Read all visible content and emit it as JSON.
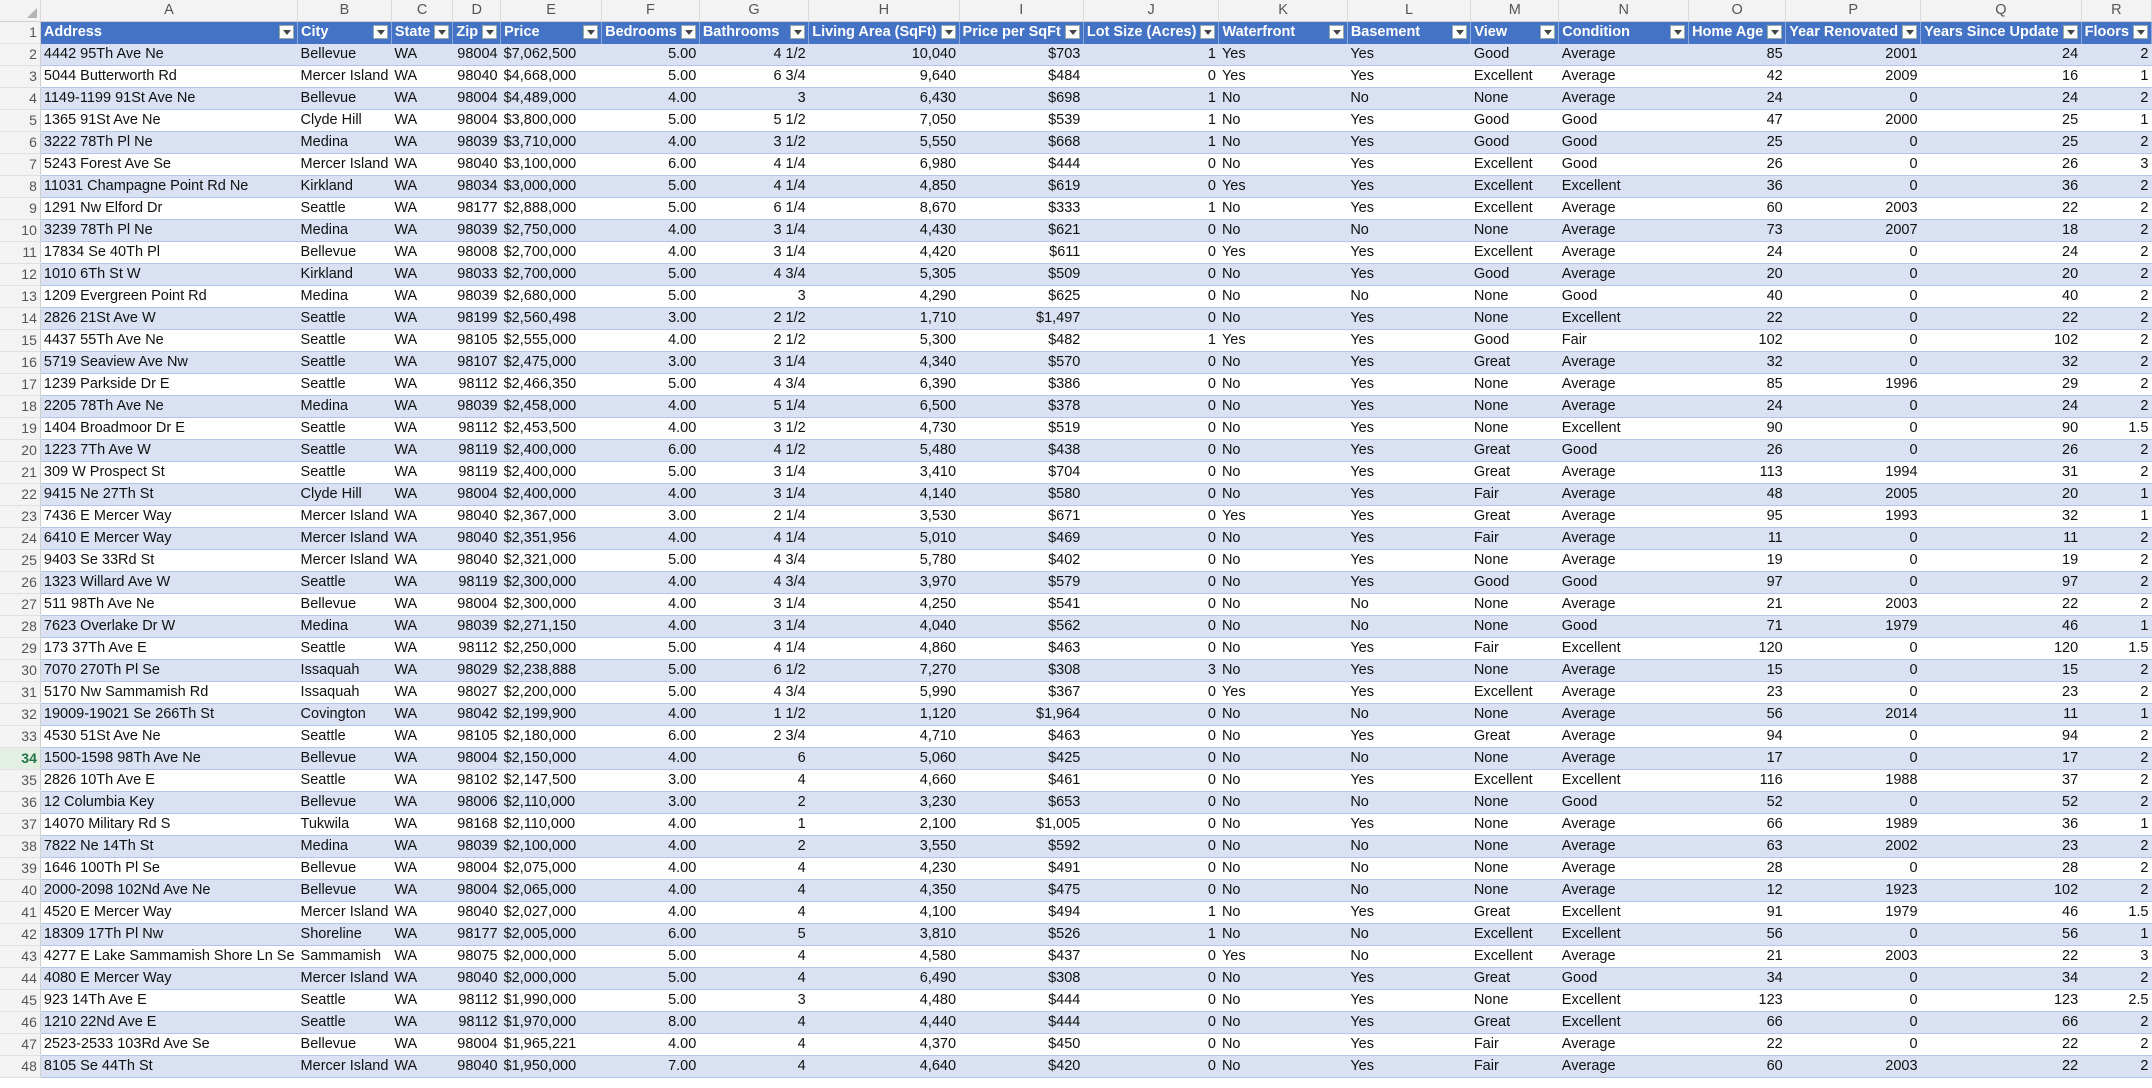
{
  "columns": [
    "A",
    "B",
    "C",
    "D",
    "E",
    "F",
    "G",
    "H",
    "I",
    "J",
    "K",
    "L",
    "M",
    "N",
    "O",
    "P",
    "Q",
    "R"
  ],
  "headers": [
    "Address",
    "City",
    "State",
    "Zip",
    "Price",
    "Bedrooms",
    "Bathrooms",
    "Living Area (SqFt)",
    "Price per SqFt",
    "Lot Size (Acres)",
    "Waterfront",
    "Basement",
    "View",
    "Condition",
    "Home Age",
    "Year Renovated",
    "Years Since Update",
    "Floors"
  ],
  "selected_row": 34,
  "rows": [
    [
      "2",
      "4442 95Th Ave Ne",
      "Bellevue",
      "WA",
      "98004",
      "$7,062,500",
      "5.00",
      "4 1/2",
      "10,040",
      "$703",
      "1",
      "Yes",
      "Yes",
      "Good",
      "Average",
      "85",
      "2001",
      "24",
      "2"
    ],
    [
      "3",
      "5044 Butterworth Rd",
      "Mercer Island",
      "WA",
      "98040",
      "$4,668,000",
      "5.00",
      "6 3/4",
      "9,640",
      "$484",
      "0",
      "Yes",
      "Yes",
      "Excellent",
      "Average",
      "42",
      "2009",
      "16",
      "1"
    ],
    [
      "4",
      "1149-1199 91St Ave Ne",
      "Bellevue",
      "WA",
      "98004",
      "$4,489,000",
      "4.00",
      "3",
      "6,430",
      "$698",
      "1",
      "No",
      "No",
      "None",
      "Average",
      "24",
      "0",
      "24",
      "2"
    ],
    [
      "5",
      "1365 91St Ave Ne",
      "Clyde Hill",
      "WA",
      "98004",
      "$3,800,000",
      "5.00",
      "5 1/2",
      "7,050",
      "$539",
      "1",
      "No",
      "Yes",
      "Good",
      "Good",
      "47",
      "2000",
      "25",
      "1"
    ],
    [
      "6",
      "3222 78Th Pl Ne",
      "Medina",
      "WA",
      "98039",
      "$3,710,000",
      "4.00",
      "3 1/2",
      "5,550",
      "$668",
      "1",
      "No",
      "Yes",
      "Good",
      "Good",
      "25",
      "0",
      "25",
      "2"
    ],
    [
      "7",
      "5243 Forest Ave Se",
      "Mercer Island",
      "WA",
      "98040",
      "$3,100,000",
      "6.00",
      "4 1/4",
      "6,980",
      "$444",
      "0",
      "No",
      "Yes",
      "Excellent",
      "Good",
      "26",
      "0",
      "26",
      "3"
    ],
    [
      "8",
      "11031 Champagne Point Rd Ne",
      "Kirkland",
      "WA",
      "98034",
      "$3,000,000",
      "5.00",
      "4 1/4",
      "4,850",
      "$619",
      "0",
      "Yes",
      "Yes",
      "Excellent",
      "Excellent",
      "36",
      "0",
      "36",
      "2"
    ],
    [
      "9",
      "1291 Nw Elford Dr",
      "Seattle",
      "WA",
      "98177",
      "$2,888,000",
      "5.00",
      "6 1/4",
      "8,670",
      "$333",
      "1",
      "No",
      "Yes",
      "Excellent",
      "Average",
      "60",
      "2003",
      "22",
      "2"
    ],
    [
      "10",
      "3239 78Th Pl Ne",
      "Medina",
      "WA",
      "98039",
      "$2,750,000",
      "4.00",
      "3 1/4",
      "4,430",
      "$621",
      "0",
      "No",
      "No",
      "None",
      "Average",
      "73",
      "2007",
      "18",
      "2"
    ],
    [
      "11",
      "17834 Se 40Th Pl",
      "Bellevue",
      "WA",
      "98008",
      "$2,700,000",
      "4.00",
      "3 1/4",
      "4,420",
      "$611",
      "0",
      "Yes",
      "Yes",
      "Excellent",
      "Average",
      "24",
      "0",
      "24",
      "2"
    ],
    [
      "12",
      "1010 6Th St W",
      "Kirkland",
      "WA",
      "98033",
      "$2,700,000",
      "5.00",
      "4 3/4",
      "5,305",
      "$509",
      "0",
      "No",
      "Yes",
      "Good",
      "Average",
      "20",
      "0",
      "20",
      "2"
    ],
    [
      "13",
      "1209 Evergreen Point Rd",
      "Medina",
      "WA",
      "98039",
      "$2,680,000",
      "5.00",
      "3",
      "4,290",
      "$625",
      "0",
      "No",
      "No",
      "None",
      "Good",
      "40",
      "0",
      "40",
      "2"
    ],
    [
      "14",
      "2826 21St Ave W",
      "Seattle",
      "WA",
      "98199",
      "$2,560,498",
      "3.00",
      "2 1/2",
      "1,710",
      "$1,497",
      "0",
      "No",
      "Yes",
      "None",
      "Excellent",
      "22",
      "0",
      "22",
      "2"
    ],
    [
      "15",
      "4437 55Th Ave Ne",
      "Seattle",
      "WA",
      "98105",
      "$2,555,000",
      "4.00",
      "2 1/2",
      "5,300",
      "$482",
      "1",
      "Yes",
      "Yes",
      "Good",
      "Fair",
      "102",
      "0",
      "102",
      "2"
    ],
    [
      "16",
      "5719 Seaview Ave Nw",
      "Seattle",
      "WA",
      "98107",
      "$2,475,000",
      "3.00",
      "3 1/4",
      "4,340",
      "$570",
      "0",
      "No",
      "Yes",
      "Great",
      "Average",
      "32",
      "0",
      "32",
      "2"
    ],
    [
      "17",
      "1239 Parkside Dr E",
      "Seattle",
      "WA",
      "98112",
      "$2,466,350",
      "5.00",
      "4 3/4",
      "6,390",
      "$386",
      "0",
      "No",
      "Yes",
      "None",
      "Average",
      "85",
      "1996",
      "29",
      "2"
    ],
    [
      "18",
      "2205 78Th Ave Ne",
      "Medina",
      "WA",
      "98039",
      "$2,458,000",
      "4.00",
      "5 1/4",
      "6,500",
      "$378",
      "0",
      "No",
      "Yes",
      "None",
      "Average",
      "24",
      "0",
      "24",
      "2"
    ],
    [
      "19",
      "1404 Broadmoor Dr E",
      "Seattle",
      "WA",
      "98112",
      "$2,453,500",
      "4.00",
      "3 1/2",
      "4,730",
      "$519",
      "0",
      "No",
      "Yes",
      "None",
      "Excellent",
      "90",
      "0",
      "90",
      "1.5"
    ],
    [
      "20",
      "1223 7Th Ave W",
      "Seattle",
      "WA",
      "98119",
      "$2,400,000",
      "6.00",
      "4 1/2",
      "5,480",
      "$438",
      "0",
      "No",
      "Yes",
      "Great",
      "Good",
      "26",
      "0",
      "26",
      "2"
    ],
    [
      "21",
      "309 W Prospect St",
      "Seattle",
      "WA",
      "98119",
      "$2,400,000",
      "5.00",
      "3 1/4",
      "3,410",
      "$704",
      "0",
      "No",
      "Yes",
      "Great",
      "Average",
      "113",
      "1994",
      "31",
      "2"
    ],
    [
      "22",
      "9415 Ne 27Th St",
      "Clyde Hill",
      "WA",
      "98004",
      "$2,400,000",
      "4.00",
      "3 1/4",
      "4,140",
      "$580",
      "0",
      "No",
      "Yes",
      "Fair",
      "Average",
      "48",
      "2005",
      "20",
      "1"
    ],
    [
      "23",
      "7436 E Mercer Way",
      "Mercer Island",
      "WA",
      "98040",
      "$2,367,000",
      "3.00",
      "2 1/4",
      "3,530",
      "$671",
      "0",
      "Yes",
      "Yes",
      "Great",
      "Average",
      "95",
      "1993",
      "32",
      "1"
    ],
    [
      "24",
      "6410 E Mercer Way",
      "Mercer Island",
      "WA",
      "98040",
      "$2,351,956",
      "4.00",
      "4 1/4",
      "5,010",
      "$469",
      "0",
      "No",
      "Yes",
      "Fair",
      "Average",
      "11",
      "0",
      "11",
      "2"
    ],
    [
      "25",
      "9403 Se 33Rd St",
      "Mercer Island",
      "WA",
      "98040",
      "$2,321,000",
      "5.00",
      "4 3/4",
      "5,780",
      "$402",
      "0",
      "No",
      "Yes",
      "None",
      "Average",
      "19",
      "0",
      "19",
      "2"
    ],
    [
      "26",
      "1323 Willard Ave W",
      "Seattle",
      "WA",
      "98119",
      "$2,300,000",
      "4.00",
      "4 3/4",
      "3,970",
      "$579",
      "0",
      "No",
      "Yes",
      "Good",
      "Good",
      "97",
      "0",
      "97",
      "2"
    ],
    [
      "27",
      "511 98Th Ave Ne",
      "Bellevue",
      "WA",
      "98004",
      "$2,300,000",
      "4.00",
      "3 1/4",
      "4,250",
      "$541",
      "0",
      "No",
      "No",
      "None",
      "Average",
      "21",
      "2003",
      "22",
      "2"
    ],
    [
      "28",
      "7623 Overlake Dr W",
      "Medina",
      "WA",
      "98039",
      "$2,271,150",
      "4.00",
      "3 1/4",
      "4,040",
      "$562",
      "0",
      "No",
      "No",
      "None",
      "Good",
      "71",
      "1979",
      "46",
      "1"
    ],
    [
      "29",
      "173 37Th Ave E",
      "Seattle",
      "WA",
      "98112",
      "$2,250,000",
      "5.00",
      "4 1/4",
      "4,860",
      "$463",
      "0",
      "No",
      "Yes",
      "Fair",
      "Excellent",
      "120",
      "0",
      "120",
      "1.5"
    ],
    [
      "30",
      "7070 270Th Pl Se",
      "Issaquah",
      "WA",
      "98029",
      "$2,238,888",
      "5.00",
      "6 1/2",
      "7,270",
      "$308",
      "3",
      "No",
      "Yes",
      "None",
      "Average",
      "15",
      "0",
      "15",
      "2"
    ],
    [
      "31",
      "5170 Nw Sammamish Rd",
      "Issaquah",
      "WA",
      "98027",
      "$2,200,000",
      "5.00",
      "4 3/4",
      "5,990",
      "$367",
      "0",
      "Yes",
      "Yes",
      "Excellent",
      "Average",
      "23",
      "0",
      "23",
      "2"
    ],
    [
      "32",
      "19009-19021 Se 266Th St",
      "Covington",
      "WA",
      "98042",
      "$2,199,900",
      "4.00",
      "1 1/2",
      "1,120",
      "$1,964",
      "0",
      "No",
      "No",
      "None",
      "Average",
      "56",
      "2014",
      "11",
      "1"
    ],
    [
      "33",
      "4530 51St Ave Ne",
      "Seattle",
      "WA",
      "98105",
      "$2,180,000",
      "6.00",
      "2 3/4",
      "4,710",
      "$463",
      "0",
      "No",
      "Yes",
      "Great",
      "Average",
      "94",
      "0",
      "94",
      "2"
    ],
    [
      "34",
      "1500-1598 98Th Ave Ne",
      "Bellevue",
      "WA",
      "98004",
      "$2,150,000",
      "4.00",
      "6",
      "5,060",
      "$425",
      "0",
      "No",
      "No",
      "None",
      "Average",
      "17",
      "0",
      "17",
      "2"
    ],
    [
      "35",
      "2826 10Th Ave E",
      "Seattle",
      "WA",
      "98102",
      "$2,147,500",
      "3.00",
      "4",
      "4,660",
      "$461",
      "0",
      "No",
      "Yes",
      "Excellent",
      "Excellent",
      "116",
      "1988",
      "37",
      "2"
    ],
    [
      "36",
      "12 Columbia Key",
      "Bellevue",
      "WA",
      "98006",
      "$2,110,000",
      "3.00",
      "2",
      "3,230",
      "$653",
      "0",
      "No",
      "No",
      "None",
      "Good",
      "52",
      "0",
      "52",
      "2"
    ],
    [
      "37",
      "14070 Military Rd S",
      "Tukwila",
      "WA",
      "98168",
      "$2,110,000",
      "4.00",
      "1",
      "2,100",
      "$1,005",
      "0",
      "No",
      "Yes",
      "None",
      "Average",
      "66",
      "1989",
      "36",
      "1"
    ],
    [
      "38",
      "7822 Ne 14Th St",
      "Medina",
      "WA",
      "98039",
      "$2,100,000",
      "4.00",
      "2",
      "3,550",
      "$592",
      "0",
      "No",
      "No",
      "None",
      "Average",
      "63",
      "2002",
      "23",
      "2"
    ],
    [
      "39",
      "1646 100Th Pl Se",
      "Bellevue",
      "WA",
      "98004",
      "$2,075,000",
      "4.00",
      "4",
      "4,230",
      "$491",
      "0",
      "No",
      "No",
      "None",
      "Average",
      "28",
      "0",
      "28",
      "2"
    ],
    [
      "40",
      "2000-2098 102Nd Ave Ne",
      "Bellevue",
      "WA",
      "98004",
      "$2,065,000",
      "4.00",
      "4",
      "4,350",
      "$475",
      "0",
      "No",
      "No",
      "None",
      "Average",
      "12",
      "1923",
      "102",
      "2"
    ],
    [
      "41",
      "4520 E Mercer Way",
      "Mercer Island",
      "WA",
      "98040",
      "$2,027,000",
      "4.00",
      "4",
      "4,100",
      "$494",
      "1",
      "No",
      "Yes",
      "Great",
      "Excellent",
      "91",
      "1979",
      "46",
      "1.5"
    ],
    [
      "42",
      "18309 17Th Pl Nw",
      "Shoreline",
      "WA",
      "98177",
      "$2,005,000",
      "6.00",
      "5",
      "3,810",
      "$526",
      "1",
      "No",
      "No",
      "Excellent",
      "Excellent",
      "56",
      "0",
      "56",
      "1"
    ],
    [
      "43",
      "4277 E Lake Sammamish Shore Ln Se",
      "Sammamish",
      "WA",
      "98075",
      "$2,000,000",
      "5.00",
      "4",
      "4,580",
      "$437",
      "0",
      "Yes",
      "No",
      "Excellent",
      "Average",
      "21",
      "2003",
      "22",
      "3"
    ],
    [
      "44",
      "4080 E Mercer Way",
      "Mercer Island",
      "WA",
      "98040",
      "$2,000,000",
      "5.00",
      "4",
      "6,490",
      "$308",
      "0",
      "No",
      "Yes",
      "Great",
      "Good",
      "34",
      "0",
      "34",
      "2"
    ],
    [
      "45",
      "923 14Th Ave E",
      "Seattle",
      "WA",
      "98112",
      "$1,990,000",
      "5.00",
      "3",
      "4,480",
      "$444",
      "0",
      "No",
      "Yes",
      "None",
      "Excellent",
      "123",
      "0",
      "123",
      "2.5"
    ],
    [
      "46",
      "1210 22Nd Ave E",
      "Seattle",
      "WA",
      "98112",
      "$1,970,000",
      "8.00",
      "4",
      "4,440",
      "$444",
      "0",
      "No",
      "Yes",
      "Great",
      "Excellent",
      "66",
      "0",
      "66",
      "2"
    ],
    [
      "47",
      "2523-2533 103Rd Ave Se",
      "Bellevue",
      "WA",
      "98004",
      "$1,965,221",
      "4.00",
      "4",
      "4,370",
      "$450",
      "0",
      "No",
      "Yes",
      "Fair",
      "Average",
      "22",
      "0",
      "22",
      "2"
    ],
    [
      "48",
      "8105 Se 44Th St",
      "Mercer Island",
      "WA",
      "98040",
      "$1,950,000",
      "7.00",
      "4",
      "4,640",
      "$420",
      "0",
      "No",
      "Yes",
      "Fair",
      "Average",
      "60",
      "2003",
      "22",
      "2"
    ]
  ]
}
